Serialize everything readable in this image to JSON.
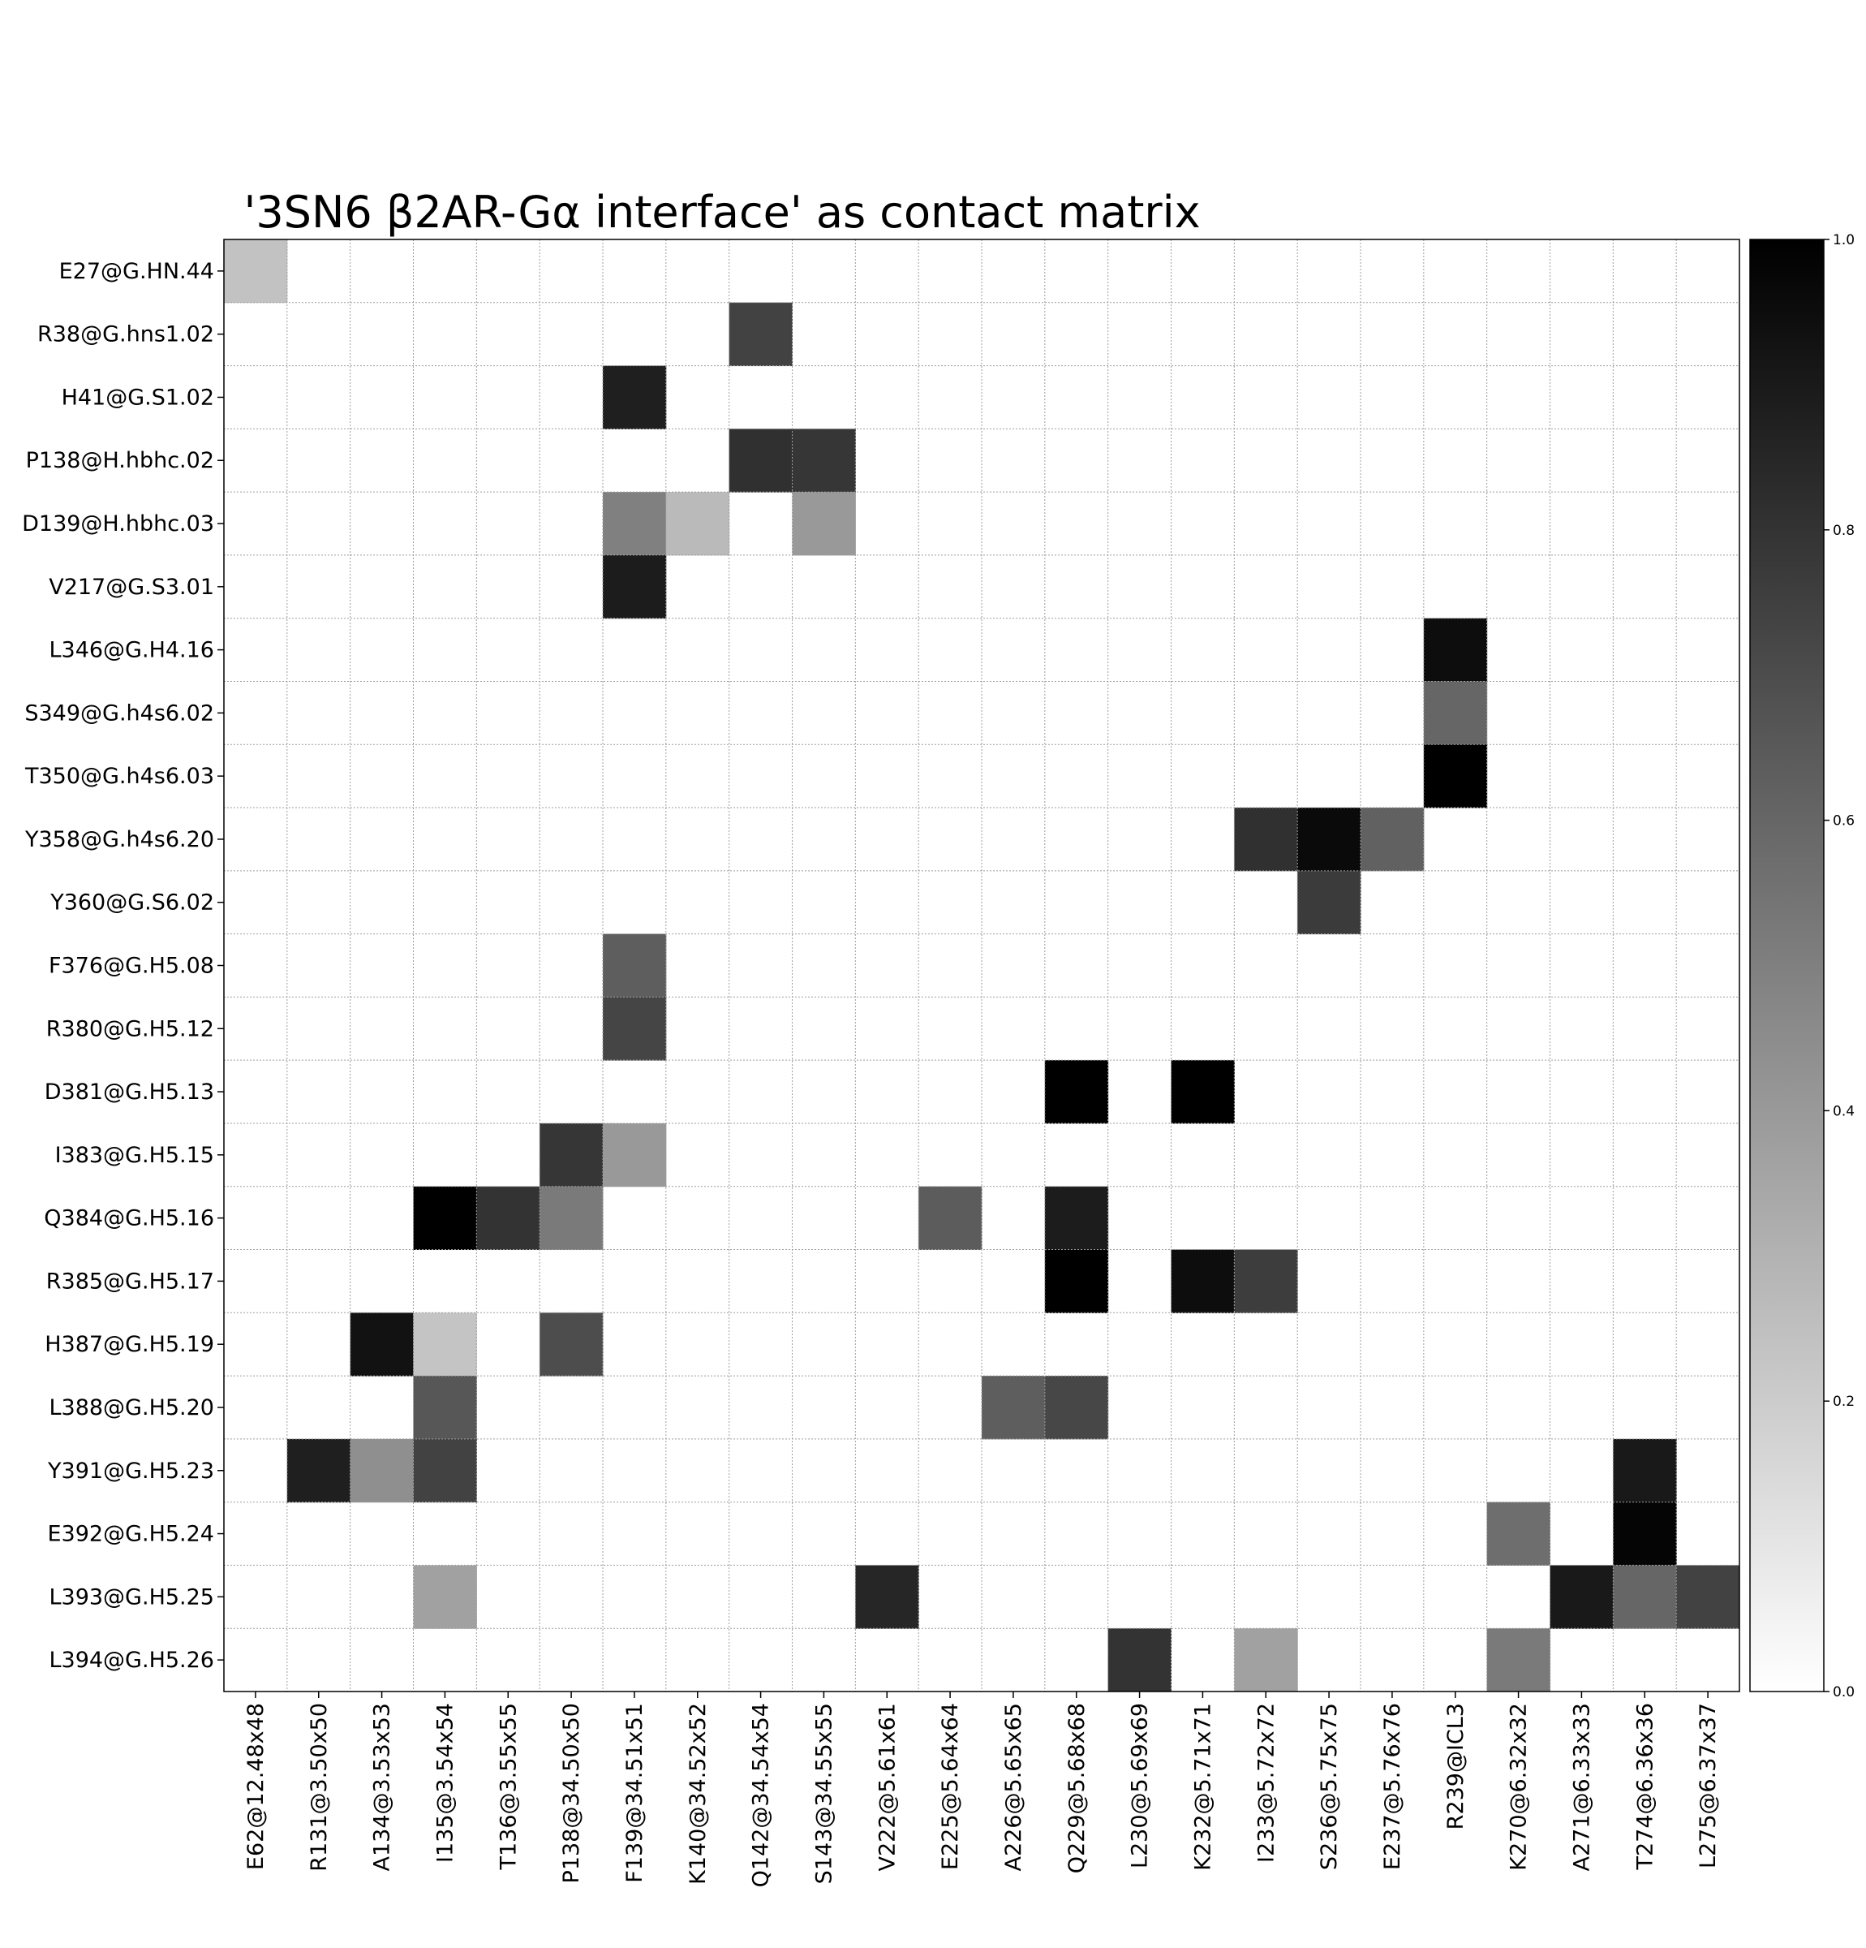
{
  "chart_data": {
    "type": "heatmap",
    "title": "'3SN6 β2AR-Gα interface'  as contact matrix",
    "rows": [
      "E27@G.HN.44",
      "R38@G.hns1.02",
      "H41@G.S1.02",
      "P138@H.hbhc.02",
      "D139@H.hbhc.03",
      "V217@G.S3.01",
      "L346@G.H4.16",
      "S349@G.h4s6.02",
      "T350@G.h4s6.03",
      "Y358@G.h4s6.20",
      "Y360@G.S6.02",
      "F376@G.H5.08",
      "R380@G.H5.12",
      "D381@G.H5.13",
      "I383@G.H5.15",
      "Q384@G.H5.16",
      "R385@G.H5.17",
      "H387@G.H5.19",
      "L388@G.H5.20",
      "Y391@G.H5.23",
      "E392@G.H5.24",
      "L393@G.H5.25",
      "L394@G.H5.26"
    ],
    "columns": [
      "E62@12.48x48",
      "R131@3.50x50",
      "A134@3.53x53",
      "I135@3.54x54",
      "T136@3.55x55",
      "P138@34.50x50",
      "F139@34.51x51",
      "K140@34.52x52",
      "Q142@34.54x54",
      "S143@34.55x55",
      "V222@5.61x61",
      "E225@5.64x64",
      "A226@5.65x65",
      "Q229@5.68x68",
      "L230@5.69x69",
      "K232@5.71x71",
      "I233@5.72x72",
      "S236@5.75x75",
      "E237@5.76x76",
      "R239@ICL3",
      "K270@6.32x32",
      "A271@6.33x33",
      "T274@6.36x36",
      "L275@6.37x37"
    ],
    "cells": [
      {
        "row": 0,
        "col": 0,
        "value": 0.24
      },
      {
        "row": 1,
        "col": 8,
        "value": 0.74
      },
      {
        "row": 2,
        "col": 6,
        "value": 0.88
      },
      {
        "row": 3,
        "col": 8,
        "value": 0.81
      },
      {
        "row": 3,
        "col": 9,
        "value": 0.79
      },
      {
        "row": 4,
        "col": 6,
        "value": 0.5
      },
      {
        "row": 4,
        "col": 7,
        "value": 0.27
      },
      {
        "row": 4,
        "col": 9,
        "value": 0.4
      },
      {
        "row": 5,
        "col": 6,
        "value": 0.89
      },
      {
        "row": 6,
        "col": 19,
        "value": 0.95
      },
      {
        "row": 7,
        "col": 19,
        "value": 0.6
      },
      {
        "row": 8,
        "col": 19,
        "value": 1.0
      },
      {
        "row": 9,
        "col": 16,
        "value": 0.81
      },
      {
        "row": 9,
        "col": 17,
        "value": 0.96
      },
      {
        "row": 9,
        "col": 18,
        "value": 0.62
      },
      {
        "row": 10,
        "col": 17,
        "value": 0.77
      },
      {
        "row": 11,
        "col": 6,
        "value": 0.63
      },
      {
        "row": 12,
        "col": 6,
        "value": 0.73
      },
      {
        "row": 13,
        "col": 13,
        "value": 1.0
      },
      {
        "row": 13,
        "col": 15,
        "value": 1.0
      },
      {
        "row": 14,
        "col": 5,
        "value": 0.79
      },
      {
        "row": 14,
        "col": 6,
        "value": 0.4
      },
      {
        "row": 15,
        "col": 3,
        "value": 1.0
      },
      {
        "row": 15,
        "col": 4,
        "value": 0.8
      },
      {
        "row": 15,
        "col": 5,
        "value": 0.52
      },
      {
        "row": 15,
        "col": 11,
        "value": 0.64
      },
      {
        "row": 15,
        "col": 13,
        "value": 0.89
      },
      {
        "row": 16,
        "col": 13,
        "value": 1.0
      },
      {
        "row": 16,
        "col": 15,
        "value": 0.95
      },
      {
        "row": 16,
        "col": 16,
        "value": 0.76
      },
      {
        "row": 17,
        "col": 2,
        "value": 0.93
      },
      {
        "row": 17,
        "col": 3,
        "value": 0.23
      },
      {
        "row": 17,
        "col": 5,
        "value": 0.7
      },
      {
        "row": 18,
        "col": 3,
        "value": 0.66
      },
      {
        "row": 18,
        "col": 12,
        "value": 0.63
      },
      {
        "row": 18,
        "col": 13,
        "value": 0.72
      },
      {
        "row": 19,
        "col": 1,
        "value": 0.88
      },
      {
        "row": 19,
        "col": 2,
        "value": 0.44
      },
      {
        "row": 19,
        "col": 3,
        "value": 0.74
      },
      {
        "row": 19,
        "col": 22,
        "value": 0.9
      },
      {
        "row": 20,
        "col": 20,
        "value": 0.57
      },
      {
        "row": 20,
        "col": 22,
        "value": 0.98
      },
      {
        "row": 21,
        "col": 3,
        "value": 0.37
      },
      {
        "row": 21,
        "col": 10,
        "value": 0.85
      },
      {
        "row": 21,
        "col": 21,
        "value": 0.9
      },
      {
        "row": 21,
        "col": 22,
        "value": 0.6
      },
      {
        "row": 21,
        "col": 23,
        "value": 0.74
      },
      {
        "row": 22,
        "col": 14,
        "value": 0.8
      },
      {
        "row": 22,
        "col": 16,
        "value": 0.37
      },
      {
        "row": 22,
        "col": 20,
        "value": 0.52
      }
    ],
    "colorbar": {
      "min": 0.0,
      "max": 1.0,
      "ticks": [
        "0.0",
        "0.2",
        "0.4",
        "0.6",
        "0.8",
        "1.0"
      ],
      "colormap": "Greys"
    },
    "grid": true
  }
}
